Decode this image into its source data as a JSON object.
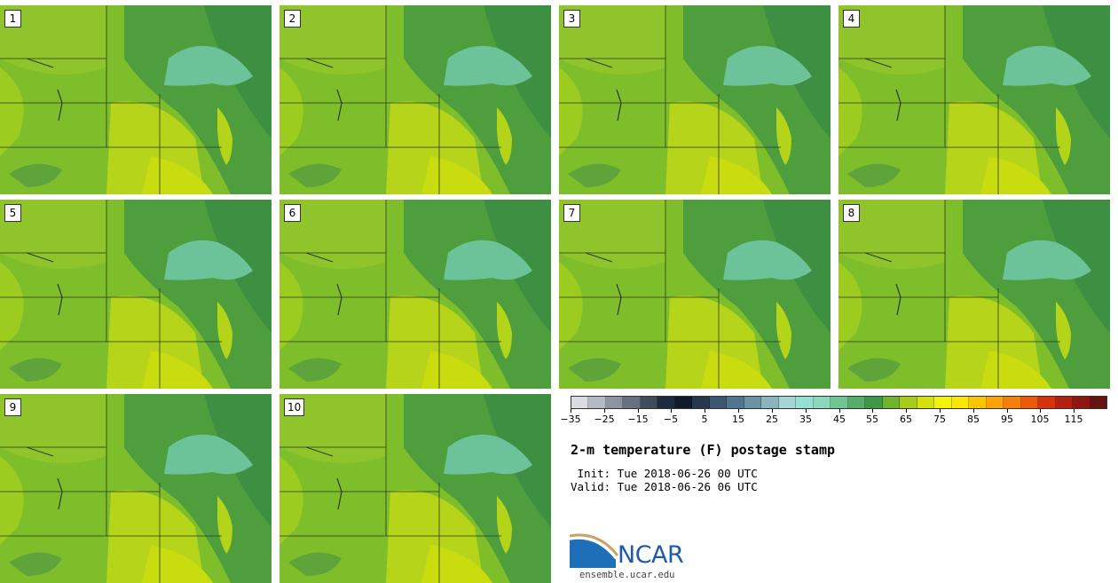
{
  "panels": [
    {
      "label": "1"
    },
    {
      "label": "2"
    },
    {
      "label": "3"
    },
    {
      "label": "4"
    },
    {
      "label": "5"
    },
    {
      "label": "6"
    },
    {
      "label": "7"
    },
    {
      "label": "8"
    },
    {
      "label": "9"
    },
    {
      "label": "10"
    }
  ],
  "colorbar": {
    "colors": [
      "#d9dde3",
      "#b4bac4",
      "#8c94a2",
      "#66707f",
      "#404b5c",
      "#1e2a3d",
      "#101a2b",
      "#25384c",
      "#3a5670",
      "#507590",
      "#6a93a6",
      "#8ab5bd",
      "#a6d6d4",
      "#94e0d2",
      "#8ad7bb",
      "#70c595",
      "#56ad6a",
      "#3f9846",
      "#6fb32f",
      "#a7cb1a",
      "#d3e20c",
      "#f2f20a",
      "#fde502",
      "#fcc503",
      "#fba407",
      "#f67f0a",
      "#ec580a",
      "#d4330c",
      "#b41f0f",
      "#8e160f",
      "#66140d"
    ],
    "tick_labels": [
      "−35",
      "−25",
      "−15",
      "−5",
      "5",
      "15",
      "25",
      "35",
      "45",
      "55",
      "65",
      "75",
      "85",
      "95",
      "105",
      "115"
    ]
  },
  "title": "2-m temperature (F) postage stamp",
  "init_line": " Init: Tue 2018-06-26 00 UTC",
  "valid_line": "Valid: Tue 2018-06-26 06 UTC",
  "logo_text": "NCAR",
  "site": "ensemble.ucar.edu"
}
